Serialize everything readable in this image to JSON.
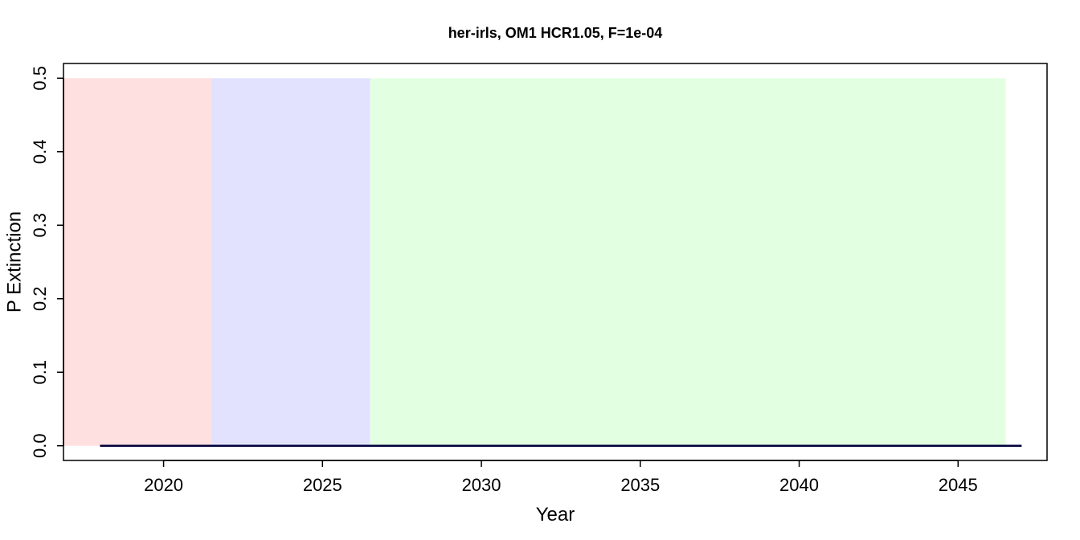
{
  "chart_data": {
    "type": "line",
    "title": "her-irls, OM1 HCR1.05, F=1e-04",
    "xlabel": "Year",
    "ylabel": "P Extinction",
    "xlim": [
      2016.85,
      2047.8
    ],
    "ylim": [
      -0.02,
      0.52
    ],
    "xticks": [
      2020,
      2025,
      2030,
      2035,
      2040,
      2045
    ],
    "yticks": [
      0.0,
      0.1,
      0.2,
      0.3,
      0.4,
      0.5
    ],
    "ytick_labels": [
      "0.0",
      "0.1",
      "0.2",
      "0.3",
      "0.4",
      "0.5"
    ],
    "grid": false,
    "shaded_regions": [
      {
        "x0": 2016.85,
        "x1": 2021.5,
        "y0": 0,
        "y1": 0.5,
        "color": "#ffe0e0"
      },
      {
        "x0": 2021.5,
        "x1": 2026.5,
        "y0": 0,
        "y1": 0.5,
        "color": "#e2e2ff"
      },
      {
        "x0": 2026.5,
        "x1": 2046.5,
        "y0": 0,
        "y1": 0.5,
        "color": "#e2ffe2"
      }
    ],
    "series": [
      {
        "color": "#00003c",
        "x": [
          2018,
          2019,
          2020,
          2021,
          2022,
          2023,
          2024,
          2025,
          2026,
          2027,
          2028,
          2029,
          2030,
          2031,
          2032,
          2033,
          2034,
          2035,
          2036,
          2037,
          2038,
          2039,
          2040,
          2041,
          2042,
          2043,
          2044,
          2045,
          2046,
          2047
        ],
        "y": [
          0,
          0,
          0,
          0,
          0,
          0,
          0,
          0,
          0,
          0,
          0,
          0,
          0,
          0,
          0,
          0,
          0,
          0,
          0,
          0,
          0,
          0,
          0,
          0,
          0,
          0,
          0,
          0,
          0,
          0
        ]
      }
    ]
  }
}
